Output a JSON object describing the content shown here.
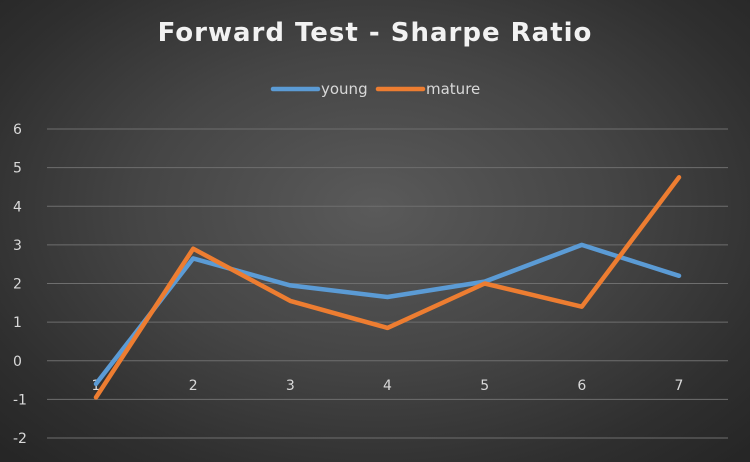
{
  "chart_data": {
    "type": "line",
    "title": "Forward Test - Sharpe Ratio",
    "xlabel": "",
    "ylabel": "",
    "categories": [
      "1",
      "2",
      "3",
      "4",
      "5",
      "6",
      "7"
    ],
    "ylim": [
      -2,
      6
    ],
    "yticks": [
      "-2",
      "-1",
      "0",
      "1",
      "2",
      "3",
      "4",
      "5",
      "6"
    ],
    "grid": true,
    "legend_position": "top",
    "series": [
      {
        "name": "young",
        "color": "#5b9bd5",
        "values": [
          -0.6,
          2.65,
          1.95,
          1.65,
          2.05,
          3.0,
          2.2
        ]
      },
      {
        "name": "mature",
        "color": "#ed7d31",
        "values": [
          -0.95,
          2.9,
          1.55,
          0.85,
          2.0,
          1.4,
          4.75
        ]
      }
    ]
  }
}
